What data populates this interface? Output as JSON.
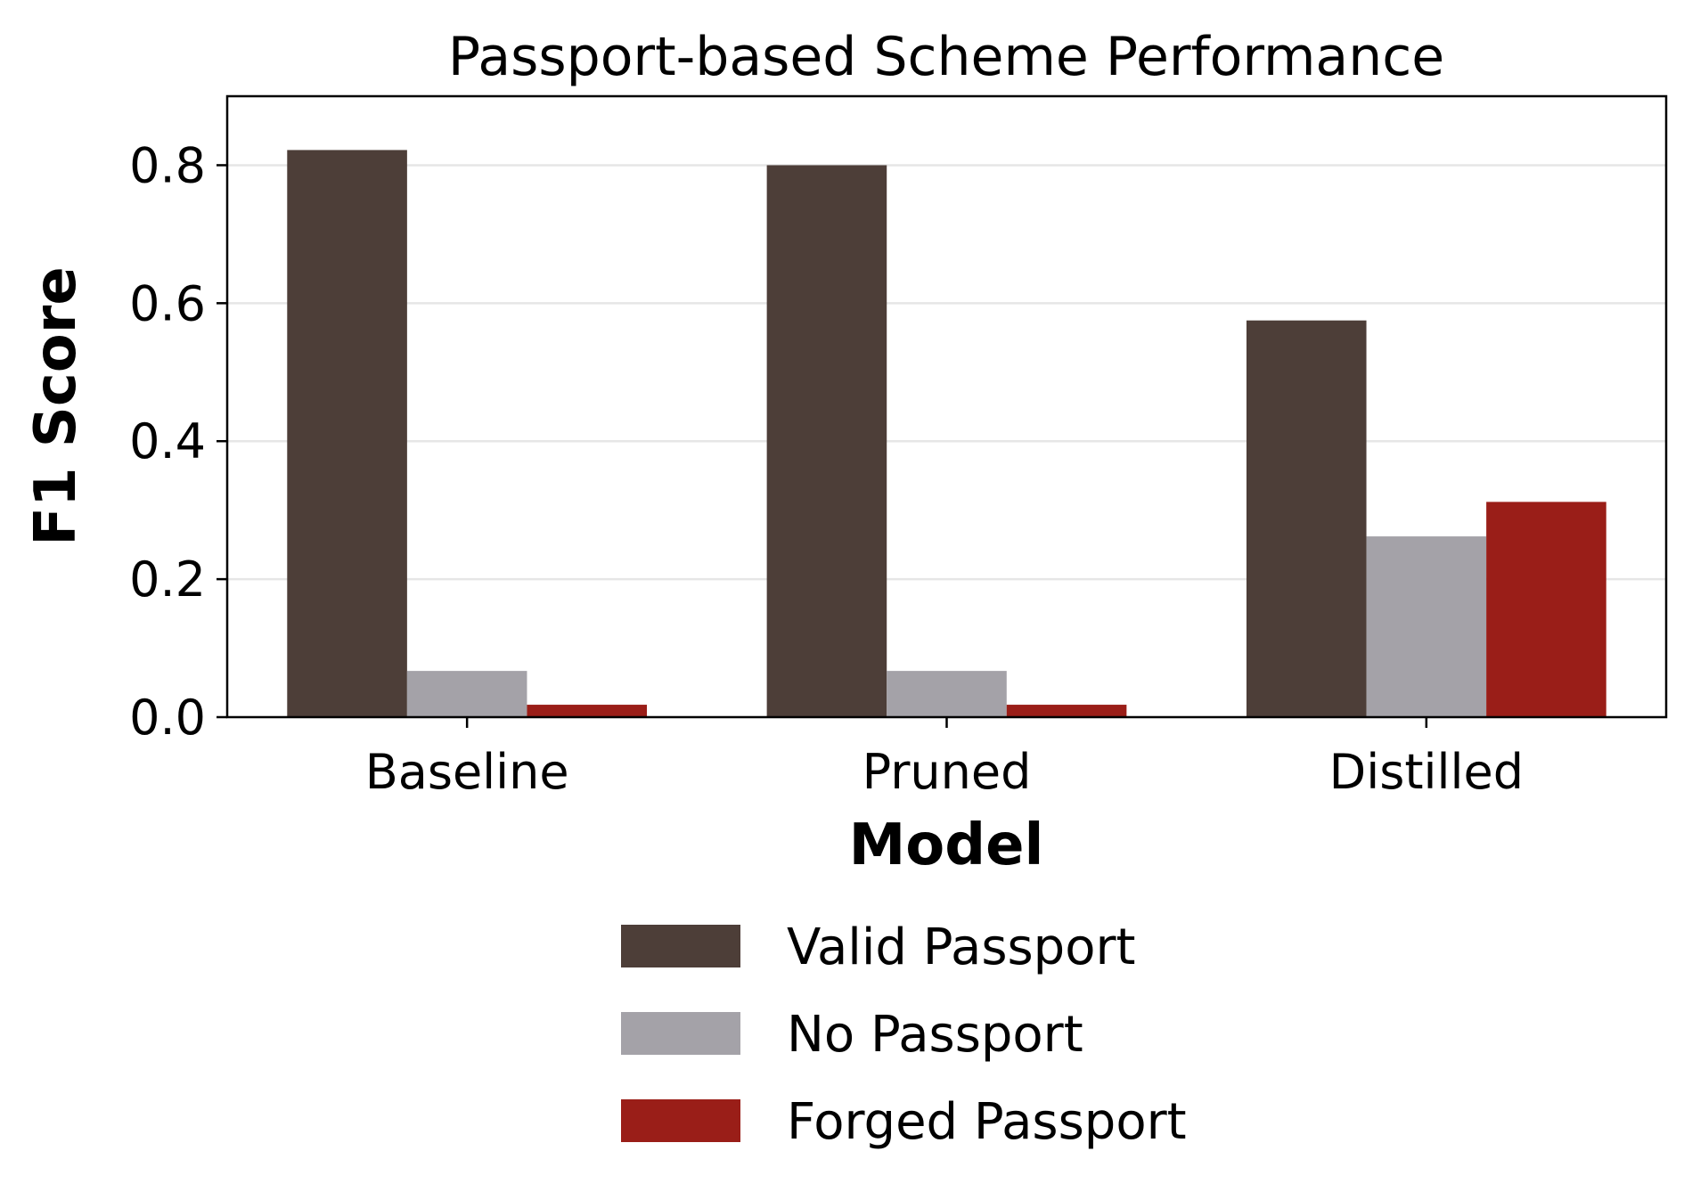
{
  "chart_data": {
    "type": "bar",
    "title": "Passport-based Scheme Performance",
    "xlabel": "Model",
    "ylabel": "F1 Score",
    "categories": [
      "Baseline",
      "Pruned",
      "Distilled"
    ],
    "series": [
      {
        "name": "Valid Passport",
        "color": "#4d3e38",
        "values": [
          0.822,
          0.8,
          0.575
        ]
      },
      {
        "name": "No Passport",
        "color": "#a4a2a8",
        "values": [
          0.067,
          0.067,
          0.262
        ]
      },
      {
        "name": "Forged Passport",
        "color": "#9a1e18",
        "values": [
          0.018,
          0.018,
          0.312
        ]
      }
    ],
    "ylim": [
      0,
      0.9
    ],
    "yticks": [
      "0.0",
      "0.2",
      "0.4",
      "0.6",
      "0.8"
    ],
    "ytick_values": [
      0,
      0.2,
      0.4,
      0.6,
      0.8
    ],
    "grid": "horizontal",
    "legend_position": "bottom-center"
  }
}
